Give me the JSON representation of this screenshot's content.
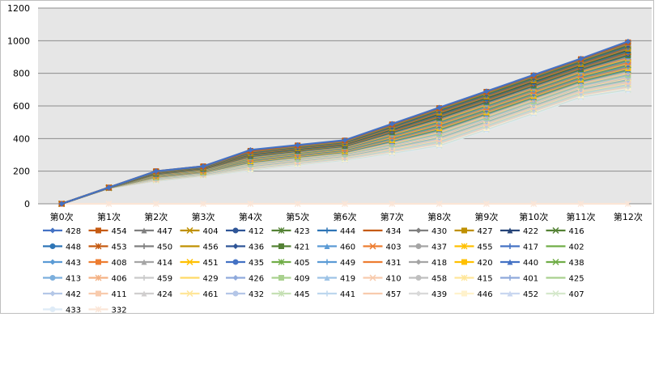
{
  "chart_data": {
    "type": "line",
    "title": "",
    "xlabel": "",
    "ylabel": "",
    "ylim": [
      0,
      1200
    ],
    "yticks": [
      0,
      200,
      400,
      600,
      800,
      1000,
      1200
    ],
    "grid": true,
    "legend_position": "bottom",
    "categories": [
      "第0次",
      "第1次",
      "第2次",
      "第3次",
      "第4次",
      "第5次",
      "第6次",
      "第7次",
      "第8次",
      "第9次",
      "第10次",
      "第11次",
      "第12次"
    ],
    "series": [
      {
        "name": "428",
        "color": "#4472C4",
        "values": [
          0,
          100,
          200,
          230,
          330,
          360,
          390,
          490,
          590,
          690,
          790,
          890,
          995
        ]
      },
      {
        "name": "454",
        "color": "#C55A11",
        "values": [
          0,
          100,
          200,
          230,
          325,
          358,
          388,
          487,
          587,
          687,
          787,
          887,
          990
        ]
      },
      {
        "name": "447",
        "color": "#7F7F7F",
        "values": [
          0,
          100,
          198,
          228,
          322,
          355,
          385,
          484,
          584,
          684,
          784,
          884,
          985
        ]
      },
      {
        "name": "404",
        "color": "#BF9000",
        "values": [
          0,
          100,
          197,
          227,
          320,
          352,
          382,
          480,
          580,
          680,
          780,
          880,
          980
        ]
      },
      {
        "name": "412",
        "color": "#2F5597",
        "values": [
          0,
          99,
          196,
          226,
          318,
          350,
          380,
          477,
          577,
          677,
          777,
          877,
          975
        ]
      },
      {
        "name": "423",
        "color": "#548235",
        "values": [
          0,
          99,
          195,
          225,
          316,
          348,
          378,
          474,
          574,
          672,
          772,
          872,
          970
        ]
      },
      {
        "name": "444",
        "color": "#2E75B6",
        "values": [
          0,
          99,
          194,
          224,
          314,
          346,
          376,
          471,
          570,
          668,
          768,
          868,
          965
        ]
      },
      {
        "name": "434",
        "color": "#C55A11",
        "values": [
          0,
          99,
          193,
          223,
          312,
          344,
          374,
          468,
          566,
          664,
          764,
          864,
          960
        ]
      },
      {
        "name": "430",
        "color": "#7F7F7F",
        "values": [
          0,
          99,
          192,
          222,
          310,
          342,
          372,
          465,
          562,
          660,
          760,
          860,
          955
        ]
      },
      {
        "name": "427",
        "color": "#BF9000",
        "values": [
          0,
          99,
          191,
          221,
          308,
          340,
          370,
          462,
          558,
          656,
          756,
          856,
          950
        ]
      },
      {
        "name": "422",
        "color": "#264478",
        "values": [
          0,
          99,
          190,
          220,
          306,
          338,
          368,
          459,
          554,
          652,
          752,
          852,
          945
        ]
      },
      {
        "name": "416",
        "color": "#548235",
        "values": [
          0,
          99,
          189,
          219,
          304,
          336,
          366,
          456,
          550,
          648,
          748,
          848,
          940
        ]
      },
      {
        "name": "448",
        "color": "#2E75B6",
        "values": [
          0,
          99,
          188,
          218,
          302,
          334,
          364,
          453,
          546,
          644,
          744,
          844,
          935
        ]
      },
      {
        "name": "453",
        "color": "#C55A11",
        "values": [
          0,
          99,
          187,
          217,
          300,
          332,
          362,
          450,
          542,
          640,
          740,
          840,
          930
        ]
      },
      {
        "name": "450",
        "color": "#7F7F7F",
        "values": [
          0,
          99,
          186,
          216,
          298,
          330,
          360,
          447,
          538,
          636,
          736,
          836,
          925
        ]
      },
      {
        "name": "456",
        "color": "#BF9000",
        "values": [
          0,
          99,
          185,
          215,
          296,
          328,
          358,
          444,
          534,
          632,
          732,
          832,
          920
        ]
      },
      {
        "name": "436",
        "color": "#2F5597",
        "values": [
          0,
          99,
          184,
          214,
          294,
          326,
          356,
          441,
          530,
          628,
          728,
          828,
          915
        ]
      },
      {
        "name": "421",
        "color": "#548235",
        "values": [
          0,
          99,
          183,
          213,
          292,
          324,
          354,
          438,
          526,
          624,
          724,
          824,
          910
        ]
      },
      {
        "name": "460",
        "color": "#5B9BD5",
        "values": [
          0,
          99,
          182,
          212,
          290,
          322,
          352,
          435,
          522,
          620,
          720,
          820,
          905
        ]
      },
      {
        "name": "403",
        "color": "#ED7D31",
        "values": [
          0,
          99,
          181,
          211,
          288,
          320,
          350,
          432,
          518,
          616,
          716,
          816,
          900
        ]
      },
      {
        "name": "437",
        "color": "#A5A5A5",
        "values": [
          0,
          99,
          180,
          210,
          286,
          318,
          348,
          429,
          514,
          612,
          712,
          812,
          895
        ]
      },
      {
        "name": "455",
        "color": "#FFC000",
        "values": [
          0,
          99,
          179,
          209,
          284,
          316,
          346,
          426,
          510,
          608,
          708,
          808,
          890
        ]
      },
      {
        "name": "417",
        "color": "#4472C4",
        "values": [
          0,
          98,
          178,
          208,
          282,
          314,
          344,
          423,
          506,
          604,
          704,
          804,
          885
        ]
      },
      {
        "name": "402",
        "color": "#70AD47",
        "values": [
          0,
          98,
          177,
          207,
          280,
          312,
          342,
          420,
          502,
          600,
          700,
          800,
          880
        ]
      },
      {
        "name": "443",
        "color": "#5B9BD5",
        "values": [
          0,
          98,
          176,
          206,
          278,
          310,
          340,
          417,
          498,
          596,
          696,
          796,
          875
        ]
      },
      {
        "name": "408",
        "color": "#ED7D31",
        "values": [
          0,
          98,
          175,
          205,
          276,
          308,
          338,
          414,
          494,
          592,
          692,
          792,
          870
        ]
      },
      {
        "name": "414",
        "color": "#A5A5A5",
        "values": [
          0,
          98,
          174,
          204,
          274,
          306,
          336,
          411,
          490,
          588,
          688,
          788,
          865
        ]
      },
      {
        "name": "451",
        "color": "#FFC000",
        "values": [
          0,
          98,
          173,
          203,
          272,
          304,
          334,
          408,
          486,
          584,
          684,
          784,
          860
        ]
      },
      {
        "name": "435",
        "color": "#4472C4",
        "values": [
          0,
          98,
          172,
          202,
          270,
          302,
          332,
          405,
          482,
          580,
          680,
          780,
          855
        ]
      },
      {
        "name": "405",
        "color": "#70AD47",
        "values": [
          0,
          98,
          171,
          201,
          268,
          300,
          330,
          402,
          478,
          576,
          676,
          776,
          850
        ]
      },
      {
        "name": "449",
        "color": "#5B9BD5",
        "values": [
          0,
          98,
          170,
          200,
          266,
          298,
          328,
          399,
          474,
          572,
          672,
          772,
          845
        ]
      },
      {
        "name": "431",
        "color": "#ED7D31",
        "values": [
          0,
          98,
          169,
          199,
          264,
          296,
          326,
          396,
          470,
          568,
          668,
          768,
          840
        ]
      },
      {
        "name": "418",
        "color": "#A5A5A5",
        "values": [
          0,
          98,
          168,
          198,
          262,
          294,
          324,
          393,
          466,
          564,
          664,
          764,
          835
        ]
      },
      {
        "name": "420",
        "color": "#FFC000",
        "values": [
          0,
          98,
          167,
          197,
          260,
          292,
          322,
          390,
          462,
          560,
          660,
          760,
          830
        ]
      },
      {
        "name": "440",
        "color": "#4472C4",
        "values": [
          0,
          98,
          166,
          196,
          258,
          290,
          320,
          387,
          458,
          556,
          656,
          756,
          825
        ]
      },
      {
        "name": "438",
        "color": "#70AD47",
        "values": [
          0,
          98,
          165,
          195,
          256,
          288,
          318,
          384,
          454,
          552,
          652,
          752,
          820
        ]
      },
      {
        "name": "413",
        "color": "#7CAFDD",
        "values": [
          0,
          98,
          164,
          194,
          254,
          286,
          316,
          381,
          450,
          548,
          648,
          748,
          815
        ]
      },
      {
        "name": "406",
        "color": "#F4B183",
        "values": [
          0,
          97,
          163,
          193,
          252,
          284,
          314,
          378,
          446,
          544,
          644,
          744,
          810
        ]
      },
      {
        "name": "459",
        "color": "#C9C9C9",
        "values": [
          0,
          97,
          162,
          192,
          250,
          282,
          312,
          375,
          442,
          540,
          640,
          740,
          805
        ]
      },
      {
        "name": "429",
        "color": "#FFD966",
        "values": [
          0,
          97,
          161,
          191,
          248,
          280,
          310,
          372,
          438,
          536,
          636,
          736,
          800
        ]
      },
      {
        "name": "426",
        "color": "#8FAADC",
        "values": [
          0,
          97,
          160,
          190,
          246,
          278,
          308,
          369,
          434,
          532,
          632,
          732,
          795
        ]
      },
      {
        "name": "409",
        "color": "#A9D18E",
        "values": [
          0,
          97,
          159,
          189,
          244,
          276,
          306,
          366,
          430,
          528,
          628,
          728,
          790
        ]
      },
      {
        "name": "419",
        "color": "#9DC3E6",
        "values": [
          0,
          97,
          158,
          188,
          242,
          274,
          304,
          363,
          426,
          524,
          624,
          724,
          785
        ]
      },
      {
        "name": "410",
        "color": "#F8CBAD",
        "values": [
          0,
          97,
          157,
          187,
          240,
          272,
          302,
          360,
          422,
          520,
          620,
          720,
          780
        ]
      },
      {
        "name": "458",
        "color": "#BFBFBF",
        "values": [
          0,
          97,
          156,
          186,
          238,
          270,
          300,
          357,
          418,
          516,
          616,
          716,
          775
        ]
      },
      {
        "name": "415",
        "color": "#FFE699",
        "values": [
          0,
          97,
          155,
          185,
          236,
          268,
          298,
          354,
          414,
          512,
          612,
          712,
          770
        ]
      },
      {
        "name": "401",
        "color": "#8EA9DB",
        "values": [
          0,
          97,
          154,
          184,
          234,
          266,
          296,
          351,
          410,
          508,
          608,
          708,
          765
        ]
      },
      {
        "name": "425",
        "color": "#A9D08E",
        "values": [
          0,
          97,
          153,
          183,
          232,
          264,
          294,
          348,
          406,
          504,
          604,
          704,
          760
        ]
      },
      {
        "name": "442",
        "color": "#B4C7E7",
        "values": [
          0,
          97,
          152,
          182,
          230,
          262,
          292,
          345,
          402,
          500,
          600,
          700,
          755
        ]
      },
      {
        "name": "411",
        "color": "#F8CBAD",
        "values": [
          0,
          97,
          151,
          181,
          228,
          260,
          290,
          342,
          398,
          496,
          596,
          696,
          750
        ]
      },
      {
        "name": "424",
        "color": "#D0CECE",
        "values": [
          0,
          97,
          150,
          180,
          226,
          258,
          288,
          339,
          394,
          492,
          592,
          692,
          745
        ]
      },
      {
        "name": "461",
        "color": "#FFE699",
        "values": [
          0,
          96,
          149,
          179,
          224,
          256,
          286,
          336,
          390,
          488,
          588,
          688,
          740
        ]
      },
      {
        "name": "432",
        "color": "#B4C6E7",
        "values": [
          0,
          96,
          148,
          178,
          222,
          254,
          284,
          333,
          386,
          484,
          584,
          684,
          735
        ]
      },
      {
        "name": "445",
        "color": "#C5E0B4",
        "values": [
          0,
          96,
          147,
          177,
          220,
          252,
          282,
          330,
          382,
          480,
          580,
          680,
          730
        ]
      },
      {
        "name": "441",
        "color": "#BDD7EE",
        "values": [
          0,
          96,
          146,
          176,
          218,
          250,
          280,
          327,
          378,
          476,
          576,
          676,
          725
        ]
      },
      {
        "name": "457",
        "color": "#F8CBAD",
        "values": [
          0,
          96,
          145,
          175,
          216,
          248,
          278,
          324,
          374,
          472,
          572,
          672,
          720
        ]
      },
      {
        "name": "439",
        "color": "#D9D9D9",
        "values": [
          0,
          96,
          144,
          174,
          214,
          246,
          276,
          321,
          370,
          468,
          568,
          668,
          715
        ]
      },
      {
        "name": "446",
        "color": "#FFF2CC",
        "values": [
          0,
          96,
          143,
          173,
          212,
          244,
          274,
          318,
          366,
          464,
          564,
          664,
          710
        ]
      },
      {
        "name": "452",
        "color": "#C9D7F0",
        "values": [
          0,
          96,
          142,
          172,
          210,
          242,
          272,
          315,
          362,
          460,
          560,
          660,
          705
        ]
      },
      {
        "name": "407",
        "color": "#D5E8CC",
        "values": [
          0,
          96,
          141,
          171,
          208,
          240,
          270,
          312,
          358,
          456,
          556,
          656,
          700
        ]
      },
      {
        "name": "433",
        "color": "#DEEBF7",
        "values": [
          0,
          96,
          140,
          170,
          206,
          238,
          268,
          309,
          354,
          452,
          552,
          652,
          695
        ]
      },
      {
        "name": "332",
        "color": "#FBE5D6",
        "values": [
          0,
          0,
          0,
          0,
          0,
          0,
          0,
          0,
          0,
          0,
          0,
          0,
          0
        ]
      }
    ]
  }
}
